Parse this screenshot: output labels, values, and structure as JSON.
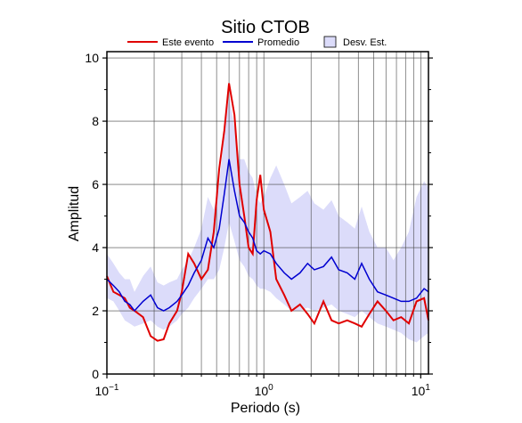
{
  "chart_data": {
    "type": "line",
    "title": "Sitio CTOB",
    "x_label": "Periodo (s)",
    "y_label": "Amplitud",
    "xlog": true,
    "grid": true,
    "xlim": [
      0.1,
      11.2
    ],
    "ylim": [
      0,
      10.2
    ],
    "xticks": [
      {
        "value": 0.1,
        "label": "10",
        "exponent": "−1"
      },
      {
        "value": 1,
        "label": "10",
        "exponent": "0"
      },
      {
        "value": 10,
        "label": "10",
        "exponent": "1"
      }
    ],
    "xminor": [
      0.2,
      0.3,
      0.4,
      0.5,
      0.6,
      0.7,
      0.8,
      0.9,
      2,
      3,
      4,
      5,
      6,
      7,
      8,
      9
    ],
    "yticks": [
      0,
      2,
      4,
      6,
      8,
      10
    ],
    "yminor": [
      1,
      3,
      5,
      7,
      9
    ],
    "x": [
      0.1,
      0.11,
      0.12,
      0.13,
      0.14,
      0.15,
      0.17,
      0.19,
      0.21,
      0.23,
      0.25,
      0.28,
      0.3,
      0.33,
      0.36,
      0.4,
      0.44,
      0.48,
      0.52,
      0.56,
      0.6,
      0.65,
      0.7,
      0.75,
      0.8,
      0.85,
      0.9,
      0.95,
      1.0,
      1.1,
      1.2,
      1.35,
      1.5,
      1.7,
      1.9,
      2.1,
      2.4,
      2.7,
      3.0,
      3.4,
      3.8,
      4.2,
      4.7,
      5.3,
      6,
      6.7,
      7.5,
      8.4,
      9.4,
      10.5,
      11.2
    ],
    "band": {
      "name": "Desv. Est.",
      "color": "#dcdcfa",
      "lower": [
        2.4,
        2.3,
        2.0,
        1.7,
        1.6,
        1.5,
        1.6,
        1.7,
        1.5,
        1.4,
        1.5,
        1.7,
        1.9,
        2.1,
        2.4,
        2.7,
        3.0,
        3.0,
        3.3,
        4.0,
        4.8,
        4.2,
        3.6,
        3.4,
        3.1,
        3.0,
        2.8,
        2.7,
        2.7,
        2.6,
        2.4,
        2.2,
        2.0,
        2.0,
        2.1,
        2.0,
        2.1,
        2.2,
        2.0,
        1.9,
        1.8,
        2.0,
        1.8,
        1.6,
        1.5,
        1.4,
        1.3,
        1.1,
        1.0,
        1.2,
        1.3
      ],
      "upper": [
        3.8,
        3.5,
        3.2,
        3.0,
        3.0,
        2.6,
        3.1,
        3.4,
        2.9,
        2.8,
        2.9,
        3.0,
        3.3,
        3.6,
        4.0,
        4.6,
        5.6,
        5.2,
        6.0,
        7.6,
        8.8,
        7.8,
        6.8,
        6.8,
        6.4,
        6.2,
        5.6,
        5.4,
        5.6,
        6.2,
        6.6,
        6.0,
        5.4,
        5.6,
        5.8,
        5.4,
        5.2,
        5.5,
        5.0,
        4.8,
        4.6,
        5.3,
        4.5,
        4.0,
        4.0,
        3.6,
        4.0,
        4.5,
        5.6,
        6.1,
        5.9
      ]
    },
    "series": [
      {
        "name": "Este evento",
        "color": "#e00000",
        "values": [
          3.1,
          2.6,
          2.5,
          2.4,
          2.1,
          2.0,
          1.8,
          1.2,
          1.05,
          1.1,
          1.6,
          2.0,
          2.6,
          3.8,
          3.5,
          3.0,
          3.3,
          4.5,
          6.5,
          7.7,
          9.2,
          8.2,
          6.0,
          5.0,
          4.0,
          3.8,
          5.5,
          6.3,
          5.2,
          4.5,
          3.0,
          2.5,
          2.0,
          2.2,
          1.9,
          1.6,
          2.3,
          1.7,
          1.6,
          1.7,
          1.6,
          1.5,
          1.9,
          2.3,
          2.0,
          1.7,
          1.8,
          1.6,
          2.3,
          2.4,
          1.7
        ]
      },
      {
        "name": "Promedio",
        "color": "#0000d0",
        "values": [
          3.0,
          2.8,
          2.6,
          2.3,
          2.2,
          2.0,
          2.3,
          2.5,
          2.1,
          2.0,
          2.1,
          2.3,
          2.5,
          2.8,
          3.2,
          3.6,
          4.3,
          4.0,
          4.6,
          5.7,
          6.8,
          5.8,
          5.0,
          4.8,
          4.5,
          4.3,
          3.9,
          3.8,
          3.9,
          3.8,
          3.5,
          3.2,
          3.0,
          3.2,
          3.5,
          3.3,
          3.4,
          3.7,
          3.3,
          3.2,
          3.0,
          3.5,
          3.0,
          2.6,
          2.5,
          2.4,
          2.3,
          2.3,
          2.4,
          2.7,
          2.6
        ]
      }
    ]
  }
}
